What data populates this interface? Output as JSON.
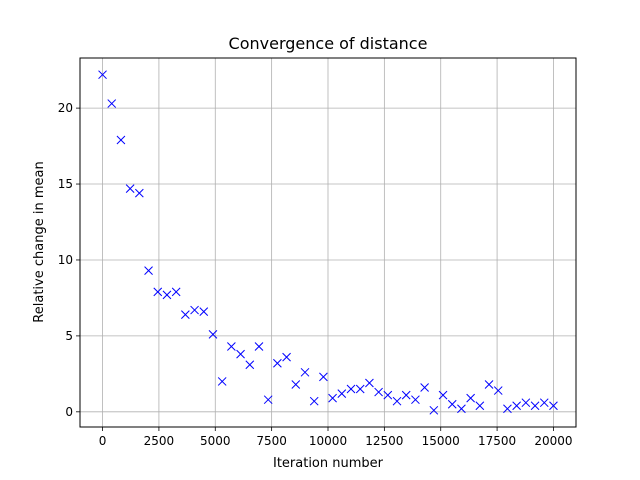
{
  "chart_data": {
    "type": "scatter",
    "title": "Convergence of distance",
    "xlabel": "Iteration number",
    "ylabel": "Relative change in mean",
    "xlim": [
      -1000,
      21000
    ],
    "ylim": [
      -1.0,
      23.3
    ],
    "xticks": [
      0,
      2500,
      5000,
      7500,
      10000,
      12500,
      15000,
      17500,
      20000
    ],
    "yticks": [
      0,
      5,
      10,
      15,
      20
    ],
    "grid": true,
    "marker": "x",
    "marker_color": "#0000ff",
    "series": [
      {
        "x": [
          0,
          408,
          816,
          1224,
          1632,
          2041,
          2449,
          2857,
          3265,
          3673,
          4082,
          4490,
          4898,
          5306,
          5714,
          6122,
          6531,
          6939,
          7347,
          7755,
          8163,
          8571,
          8980,
          9388,
          9796,
          10204,
          10612,
          11020,
          11429,
          11837,
          12245,
          12653,
          13061,
          13469,
          13878,
          14286,
          14694,
          15102,
          15510,
          15918,
          16327,
          16735,
          17143,
          17551,
          17959,
          18367,
          18776,
          19184,
          19592,
          20000
        ],
        "y": [
          22.2,
          20.3,
          17.9,
          14.7,
          14.4,
          9.3,
          7.9,
          7.7,
          7.9,
          6.4,
          6.7,
          6.6,
          5.1,
          2.0,
          4.3,
          3.8,
          3.1,
          4.3,
          0.8,
          3.2,
          3.6,
          1.8,
          2.6,
          0.7,
          2.3,
          0.9,
          1.2,
          1.5,
          1.5,
          1.9,
          1.3,
          1.1,
          0.7,
          1.1,
          0.8,
          1.6,
          0.1,
          1.1,
          0.5,
          0.2,
          0.9,
          0.4,
          1.8,
          1.4,
          0.2,
          0.4,
          0.6,
          0.4,
          0.6,
          0.4
        ]
      }
    ]
  }
}
